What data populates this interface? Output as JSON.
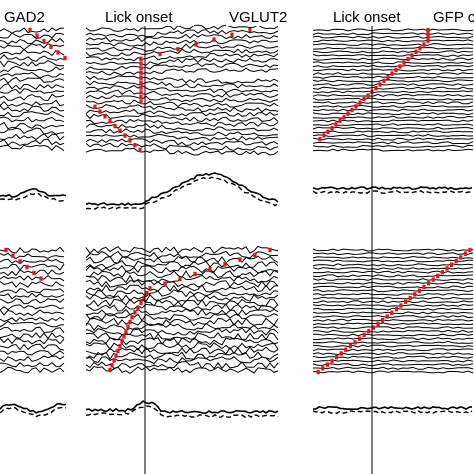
{
  "labels": {
    "panel_gad2": "GAD2",
    "panel_vglut2": "VGLUT2",
    "panel_gfp": "GFP c",
    "lick_onset_left": "Lick onset",
    "lick_onset_right": "Lick onset"
  },
  "colors": {
    "trace": "#000000",
    "onset_marker": "#e8141b",
    "background": "#ffffff"
  }
}
